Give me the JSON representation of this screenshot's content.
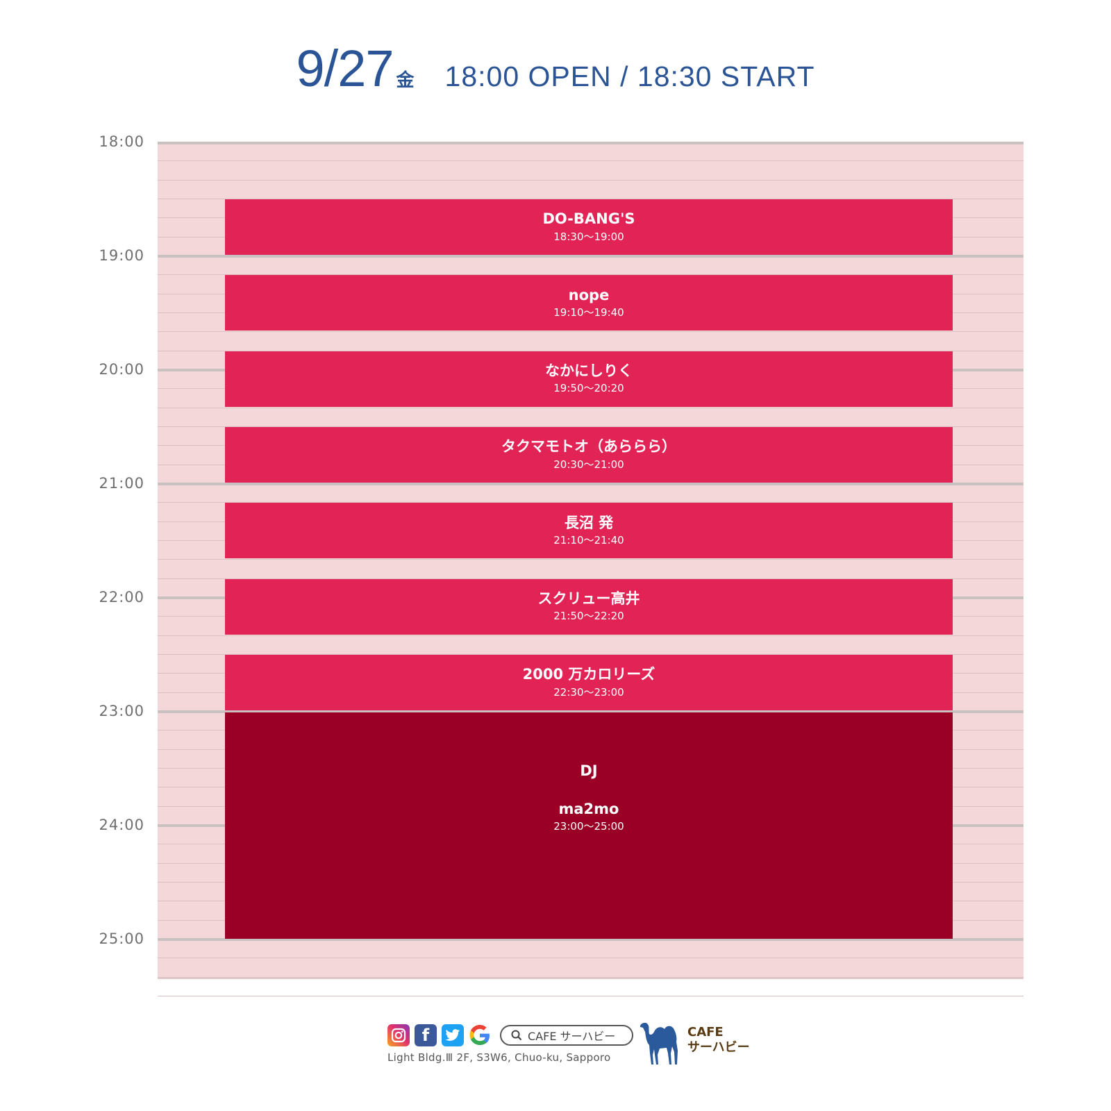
{
  "header": {
    "date": "9/27",
    "weekday": "金",
    "doors": "18:00 OPEN / 18:30 START"
  },
  "time_labels": [
    "18:00",
    "19:00",
    "20:00",
    "21:00",
    "22:00",
    "23:00",
    "24:00",
    "25:00"
  ],
  "acts": [
    {
      "name": "DO-BANG'S",
      "slot": "18:30～19:00",
      "start_min": 30,
      "end_min": 60
    },
    {
      "name": "nope",
      "slot": "19:10～19:40",
      "start_min": 70,
      "end_min": 100
    },
    {
      "name": "なかにしりく",
      "slot": "19:50～20:20",
      "start_min": 110,
      "end_min": 140
    },
    {
      "name": "タクマモトオ（あららら）",
      "slot": "20:30～21:00",
      "start_min": 150,
      "end_min": 180
    },
    {
      "name": "長沼 発",
      "slot": "21:10～21:40",
      "start_min": 190,
      "end_min": 220
    },
    {
      "name": "スクリュー高井",
      "slot": "21:50～22:20",
      "start_min": 230,
      "end_min": 260
    },
    {
      "name": "2000 万カロリーズ",
      "slot": "22:30～23:00",
      "start_min": 270,
      "end_min": 300
    }
  ],
  "dj": {
    "heading": "DJ",
    "name": "ma2mo",
    "slot": "23:00～25:00",
    "start_min": 300,
    "end_min": 420
  },
  "footer": {
    "search_text": "CAFE サーハビー",
    "address": "Light Bldg.Ⅲ 2F, S3W6, Chuo-ku, Sapporo",
    "brand_line1": "CAFE",
    "brand_line2": "サーハビー",
    "icons": [
      "instagram-icon",
      "facebook-icon",
      "twitter-icon",
      "google-icon"
    ]
  },
  "colors": {
    "header_blue": "#2a5495",
    "act_block": "#e12355",
    "dj_block": "#9a0025",
    "timeline_bg": "#f4d8d9"
  }
}
